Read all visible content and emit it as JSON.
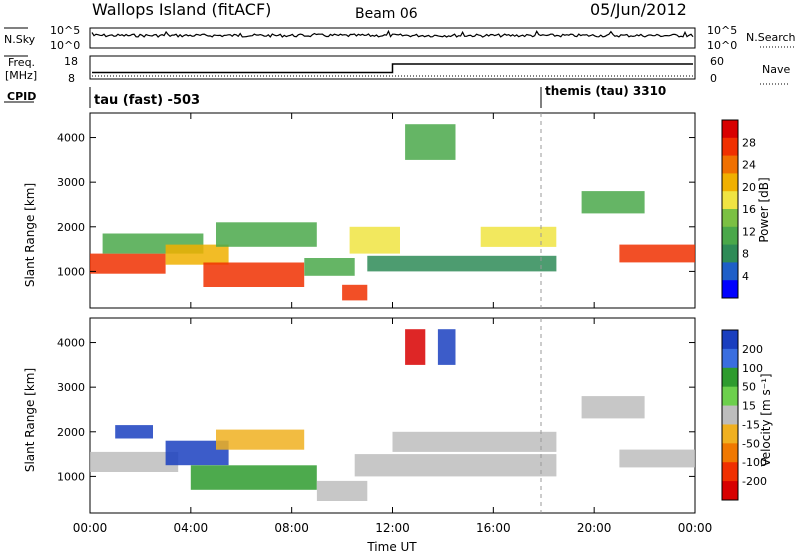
{
  "header": {
    "station": "Wallops Island (fitACF)",
    "beam": "Beam 06",
    "date": "05/Jun/2012"
  },
  "noise_panel": {
    "left_label": "N.Sky",
    "left_ticks": [
      "10^5",
      "10^0"
    ],
    "right_label": "N.Search",
    "right_ticks": [
      "10^5",
      "10^0"
    ]
  },
  "freq_panel": {
    "left_label_1": "Freq.",
    "left_label_2": "[MHz]",
    "left_ticks": [
      "18",
      "8"
    ],
    "right_label": "Nave",
    "right_ticks": [
      "60",
      "0"
    ],
    "freq_step_time_h": 12,
    "freq_before_mhz": 10.5,
    "freq_after_mhz": 15.2
  },
  "cpid_panel": {
    "label": "CPID",
    "segments": [
      {
        "text": "tau (fast) -503",
        "start_h": 0
      },
      {
        "text": "themis (tau) 3310",
        "start_h": 18
      }
    ]
  },
  "colors": {
    "power": [
      "#0000ff",
      "#1f5fc8",
      "#2e8b57",
      "#4aa84a",
      "#7bc043",
      "#f0e442",
      "#f0b000",
      "#f07000",
      "#f03000",
      "#d80000"
    ],
    "velocity": [
      "#1a3fbf",
      "#3a6ee0",
      "#2e9b2e",
      "#6ccf4c",
      "#bdbdbd",
      "#f0b020",
      "#f07800",
      "#f03000",
      "#d80000"
    ]
  },
  "chart_data": [
    {
      "type": "heatmap",
      "name": "power",
      "ylabel": "Slant Range [km]",
      "yticks": [
        1000,
        2000,
        3000,
        4000
      ],
      "ylim": [
        180,
        4550
      ],
      "xlim_h": [
        0,
        24
      ],
      "colorbar": {
        "title": "Power [dB]",
        "ticks": [
          "28",
          "24",
          "20",
          "16",
          "12",
          "8",
          "4"
        ],
        "range": [
          0,
          32
        ]
      },
      "echo_regions": [
        {
          "t0": 0.0,
          "t1": 3.0,
          "r0": 950,
          "r1": 1400,
          "value": 26
        },
        {
          "t0": 0.5,
          "t1": 4.5,
          "r0": 1400,
          "r1": 1850,
          "value": 12
        },
        {
          "t0": 3.0,
          "t1": 5.5,
          "r0": 1150,
          "r1": 1600,
          "value": 20
        },
        {
          "t0": 4.5,
          "t1": 8.5,
          "r0": 650,
          "r1": 1200,
          "value": 26
        },
        {
          "t0": 5.0,
          "t1": 9.0,
          "r0": 1550,
          "r1": 2100,
          "value": 12
        },
        {
          "t0": 8.5,
          "t1": 10.5,
          "r0": 900,
          "r1": 1300,
          "value": 12
        },
        {
          "t0": 10.0,
          "t1": 11.0,
          "r0": 350,
          "r1": 700,
          "value": 26
        },
        {
          "t0": 10.3,
          "t1": 12.3,
          "r0": 1400,
          "r1": 2000,
          "value": 18
        },
        {
          "t0": 11.0,
          "t1": 18.5,
          "r0": 1000,
          "r1": 1350,
          "value": 8
        },
        {
          "t0": 15.5,
          "t1": 18.5,
          "r0": 1550,
          "r1": 2000,
          "value": 18
        },
        {
          "t0": 19.5,
          "t1": 22.0,
          "r0": 2300,
          "r1": 2800,
          "value": 12
        },
        {
          "t0": 21.0,
          "t1": 24.0,
          "r0": 1200,
          "r1": 1600,
          "value": 26
        },
        {
          "t0": 12.5,
          "t1": 14.5,
          "r0": 3500,
          "r1": 4300,
          "value": 12
        }
      ]
    },
    {
      "type": "heatmap",
      "name": "velocity",
      "ylabel": "Slant Range [km]",
      "yticks": [
        1000,
        2000,
        3000,
        4000
      ],
      "ylim": [
        180,
        4550
      ],
      "xlim_h": [
        0,
        24
      ],
      "xticks": [
        "00:00",
        "04:00",
        "08:00",
        "12:00",
        "16:00",
        "20:00",
        "00:00"
      ],
      "xlabel": "Time UT",
      "colorbar": {
        "title": "Velocity [m s⁻¹]",
        "ticks": [
          "200",
          "100",
          "50",
          "15",
          "-15",
          "-50",
          "-100",
          "-200"
        ]
      },
      "echo_regions": [
        {
          "t0": 0.0,
          "t1": 3.5,
          "r0": 1100,
          "r1": 1550,
          "value": 0
        },
        {
          "t0": 1.0,
          "t1": 2.5,
          "r0": 1850,
          "r1": 2150,
          "value": 200
        },
        {
          "t0": 3.0,
          "t1": 5.5,
          "r0": 1250,
          "r1": 1800,
          "value": 150
        },
        {
          "t0": 4.0,
          "t1": 9.0,
          "r0": 700,
          "r1": 1250,
          "value": 50
        },
        {
          "t0": 5.0,
          "t1": 8.5,
          "r0": 1600,
          "r1": 2050,
          "value": -40
        },
        {
          "t0": 9.0,
          "t1": 11.0,
          "r0": 450,
          "r1": 900,
          "value": 0
        },
        {
          "t0": 10.5,
          "t1": 18.5,
          "r0": 1000,
          "r1": 1500,
          "value": 0
        },
        {
          "t0": 12.0,
          "t1": 18.5,
          "r0": 1550,
          "r1": 2000,
          "value": 0
        },
        {
          "t0": 19.5,
          "t1": 22.0,
          "r0": 2300,
          "r1": 2800,
          "value": 0
        },
        {
          "t0": 21.0,
          "t1": 24.0,
          "r0": 1200,
          "r1": 1600,
          "value": 0
        },
        {
          "t0": 12.5,
          "t1": 13.3,
          "r0": 3500,
          "r1": 4300,
          "value": -200
        },
        {
          "t0": 13.8,
          "t1": 14.5,
          "r0": 3500,
          "r1": 4300,
          "value": 200
        }
      ]
    }
  ]
}
